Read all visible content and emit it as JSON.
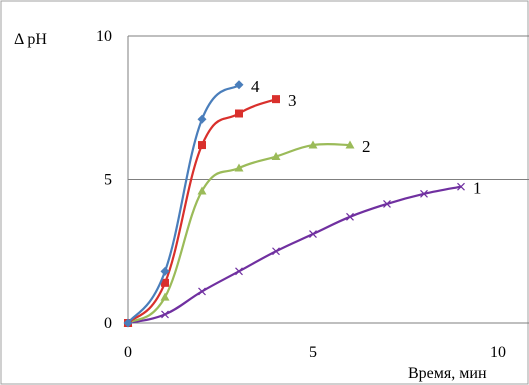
{
  "chart_data": {
    "type": "line",
    "title": "",
    "ylabel": "Δ pH",
    "xlabel": "Время, мин",
    "xlim": [
      0,
      10
    ],
    "ylim": [
      0,
      10
    ],
    "x_ticks": [
      "0",
      "5",
      "10"
    ],
    "y_ticks": [
      "0",
      "5",
      "10"
    ],
    "grid": "horizontal major gridlines",
    "legend": "none; series numbered at line ends",
    "series": [
      {
        "name": "1",
        "color": "#7030a0",
        "marker": "x",
        "x": [
          0,
          1,
          2,
          3,
          4,
          5,
          6,
          7,
          8,
          9
        ],
        "y": [
          0,
          0.3,
          1.1,
          1.8,
          2.5,
          3.1,
          3.7,
          4.15,
          4.5,
          4.75
        ]
      },
      {
        "name": "2",
        "color": "#9bbb59",
        "marker": "triangle",
        "x": [
          0,
          1,
          2,
          3,
          4,
          5,
          6
        ],
        "y": [
          0,
          0.9,
          4.6,
          5.4,
          5.8,
          6.2,
          6.2
        ]
      },
      {
        "name": "3",
        "color": "#d9302c",
        "marker": "square",
        "x": [
          0,
          1,
          2,
          3,
          4
        ],
        "y": [
          0,
          1.4,
          6.2,
          7.3,
          7.8
        ]
      },
      {
        "name": "4",
        "color": "#4a7ebb",
        "marker": "diamond",
        "x": [
          0,
          1,
          2,
          3
        ],
        "y": [
          0,
          1.8,
          7.1,
          8.3
        ]
      }
    ]
  }
}
